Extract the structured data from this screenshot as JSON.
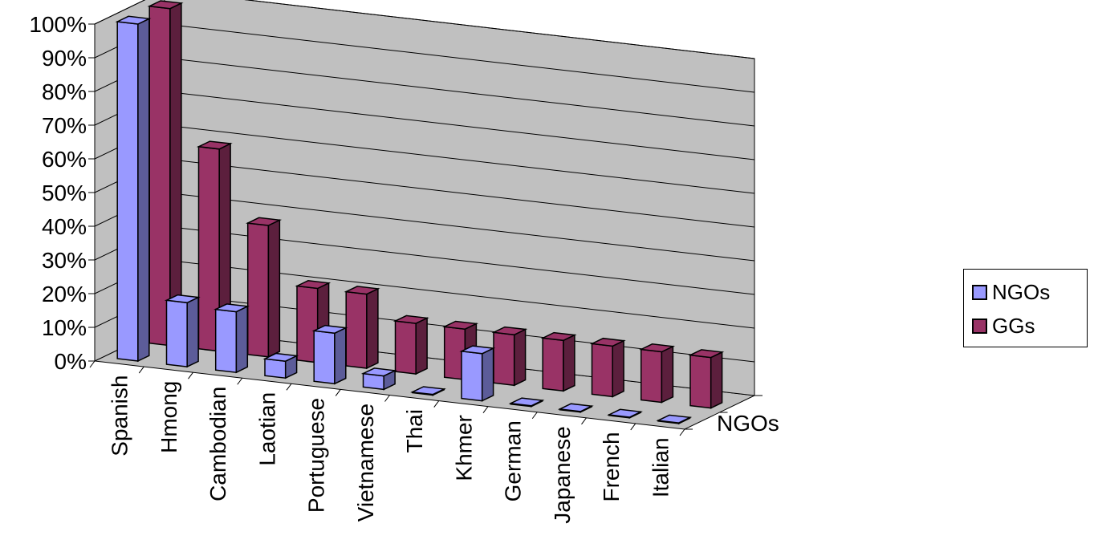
{
  "chart_data": {
    "type": "bar",
    "style": "3d-clustered",
    "categories": [
      "Spanish",
      "Hmong",
      "Cambodian",
      "Laotian",
      "Portuguese",
      "Vietnamese",
      "Thai",
      "Khmer",
      "German",
      "Japanese",
      "French",
      "Italian"
    ],
    "series": [
      {
        "name": "NGOs",
        "values": [
          100,
          19,
          18,
          5,
          15,
          4,
          0,
          14,
          0,
          0,
          0,
          0
        ],
        "color": "#9999ff",
        "side": "#5c5c99"
      },
      {
        "name": "GGs",
        "values": [
          100,
          60,
          39,
          22,
          22,
          15,
          15,
          15,
          15,
          15,
          15,
          15
        ],
        "color": "#993366",
        "side": "#5c1f3d"
      }
    ],
    "depth_label": "NGOs",
    "yticks": [
      "0%",
      "10%",
      "20%",
      "30%",
      "40%",
      "50%",
      "60%",
      "70%",
      "80%",
      "90%",
      "100%"
    ],
    "ylim": [
      0,
      100
    ],
    "grid": true,
    "wall_color": "#c0c0c0",
    "legend_position": "right"
  }
}
